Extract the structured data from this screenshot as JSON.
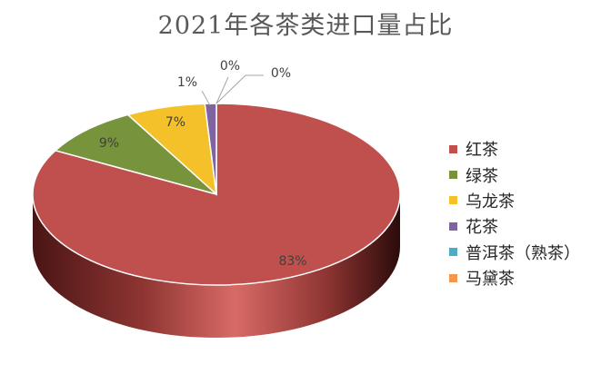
{
  "chart_data": {
    "type": "pie",
    "title": "2021年各茶类进口量占比",
    "categories": [
      "红茶",
      "绿茶",
      "乌龙茶",
      "花茶",
      "普洱茶（熟茶）",
      "马黛茶"
    ],
    "values": [
      83,
      9,
      7,
      1,
      0,
      0
    ],
    "labels": [
      "83%",
      "9%",
      "7%",
      "1%",
      "0%",
      "0%"
    ],
    "colors": [
      "#c0504d",
      "#77933c",
      "#f5c12a",
      "#8064a2",
      "#4bacc6",
      "#f79646"
    ],
    "style": "3d",
    "legend_position": "right"
  }
}
